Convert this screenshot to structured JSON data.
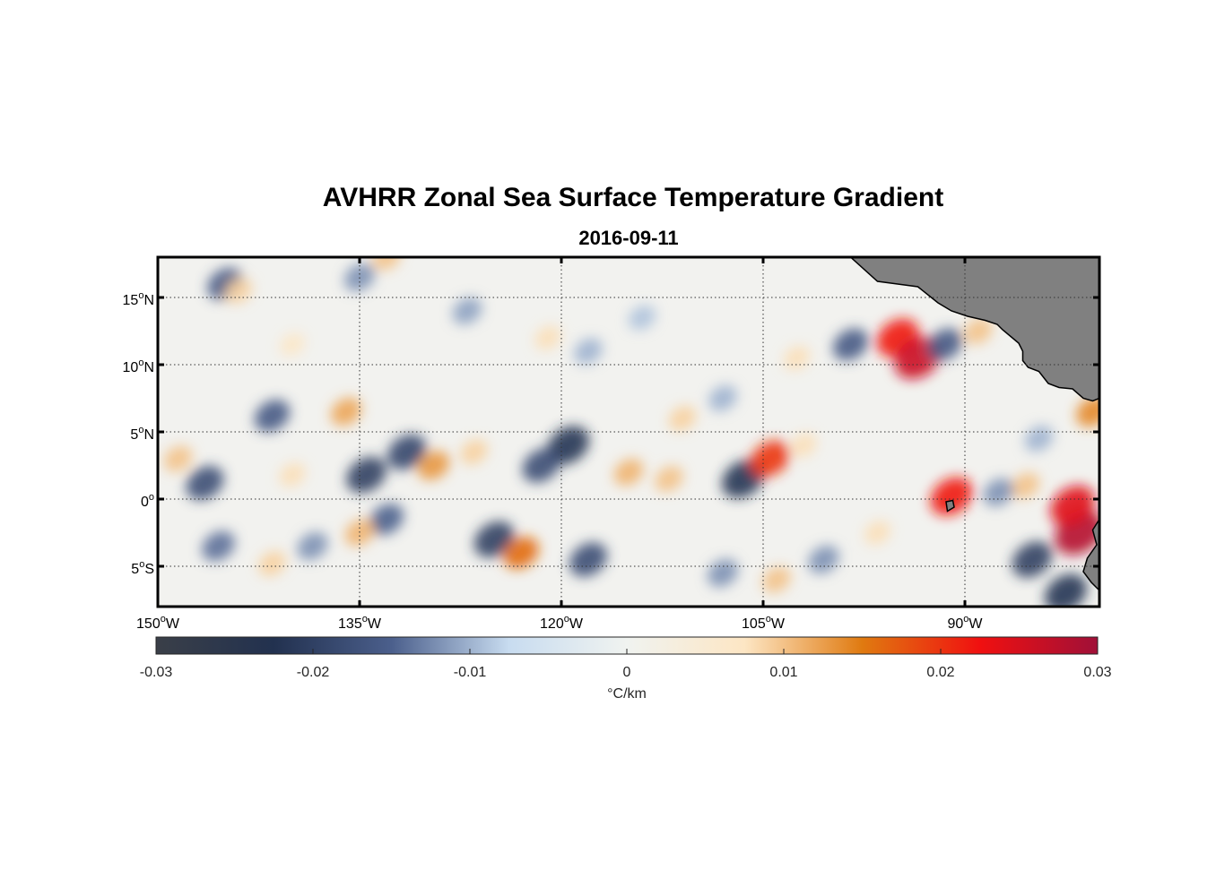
{
  "title": "AVHRR Zonal Sea Surface Temperature Gradient",
  "subtitle": "2016-09-11",
  "map": {
    "lon_range": [
      -150,
      -80
    ],
    "lat_range": [
      -8,
      18
    ],
    "grid": "dotted",
    "lat_ticks": [
      {
        "value": 15,
        "label": "15",
        "suffix": "N"
      },
      {
        "value": 10,
        "label": "10",
        "suffix": "N"
      },
      {
        "value": 5,
        "label": "5",
        "suffix": "N"
      },
      {
        "value": 0,
        "label": "0",
        "suffix": ""
      },
      {
        "value": -5,
        "label": "5",
        "suffix": "S"
      }
    ],
    "lon_ticks": [
      {
        "value": -150,
        "label": "150",
        "suffix": "W"
      },
      {
        "value": -135,
        "label": "135",
        "suffix": "W"
      },
      {
        "value": -120,
        "label": "120",
        "suffix": "W"
      },
      {
        "value": -105,
        "label": "105",
        "suffix": "W"
      },
      {
        "value": -90,
        "label": "90",
        "suffix": "W"
      }
    ],
    "land_color": "#808080",
    "anomalies": [
      {
        "lon": -146.5,
        "lat": 1.2,
        "v": -0.018
      },
      {
        "lon": -141.5,
        "lat": 6.2,
        "v": -0.016
      },
      {
        "lon": -136.0,
        "lat": 6.5,
        "v": 0.012
      },
      {
        "lon": -134.5,
        "lat": 1.8,
        "v": -0.02
      },
      {
        "lon": -131.5,
        "lat": 3.5,
        "v": -0.019
      },
      {
        "lon": -129.5,
        "lat": 2.5,
        "v": 0.013
      },
      {
        "lon": -140.0,
        "lat": 1.8,
        "v": 0.008
      },
      {
        "lon": -145.0,
        "lat": 16.0,
        "v": -0.016
      },
      {
        "lon": -144.0,
        "lat": 15.5,
        "v": 0.009
      },
      {
        "lon": -135.0,
        "lat": 16.5,
        "v": -0.012
      },
      {
        "lon": -133.0,
        "lat": 18.0,
        "v": 0.01
      },
      {
        "lon": -119.5,
        "lat": 4.0,
        "v": -0.022
      },
      {
        "lon": -121.5,
        "lat": 2.5,
        "v": -0.018
      },
      {
        "lon": -115.0,
        "lat": 2.0,
        "v": 0.011
      },
      {
        "lon": -112.0,
        "lat": 1.5,
        "v": 0.01
      },
      {
        "lon": -106.5,
        "lat": 1.5,
        "v": -0.022
      },
      {
        "lon": -104.5,
        "lat": 3.0,
        "v": 0.02
      },
      {
        "lon": -102.0,
        "lat": 4.0,
        "v": 0.008
      },
      {
        "lon": -98.5,
        "lat": 11.5,
        "v": -0.016
      },
      {
        "lon": -95.0,
        "lat": 12.0,
        "v": 0.022
      },
      {
        "lon": -93.5,
        "lat": 10.5,
        "v": 0.026
      },
      {
        "lon": -91.5,
        "lat": 11.5,
        "v": -0.016
      },
      {
        "lon": -89.0,
        "lat": 12.5,
        "v": 0.01
      },
      {
        "lon": -91.0,
        "lat": 0.2,
        "v": 0.022
      },
      {
        "lon": -81.5,
        "lat": -2.5,
        "v": 0.028
      },
      {
        "lon": -82.0,
        "lat": -0.5,
        "v": 0.024
      },
      {
        "lon": -85.0,
        "lat": -4.5,
        "v": -0.02
      },
      {
        "lon": -82.5,
        "lat": -7.0,
        "v": -0.022
      },
      {
        "lon": -85.5,
        "lat": 1.0,
        "v": 0.01
      },
      {
        "lon": -87.5,
        "lat": 0.5,
        "v": -0.012
      },
      {
        "lon": -125.0,
        "lat": -3.0,
        "v": -0.02
      },
      {
        "lon": -123.0,
        "lat": -4.0,
        "v": 0.016
      },
      {
        "lon": -118.0,
        "lat": -4.5,
        "v": -0.018
      },
      {
        "lon": -133.0,
        "lat": -1.5,
        "v": -0.015
      },
      {
        "lon": -135.0,
        "lat": -2.5,
        "v": 0.011
      },
      {
        "lon": -145.5,
        "lat": -3.5,
        "v": -0.014
      },
      {
        "lon": -141.5,
        "lat": -4.8,
        "v": 0.009
      },
      {
        "lon": -138.5,
        "lat": -3.5,
        "v": -0.012
      },
      {
        "lon": -126.5,
        "lat": 3.5,
        "v": 0.009
      },
      {
        "lon": -121.0,
        "lat": 12.0,
        "v": 0.008
      },
      {
        "lon": -118.0,
        "lat": 11.0,
        "v": -0.01
      },
      {
        "lon": -108.0,
        "lat": 7.5,
        "v": -0.01
      },
      {
        "lon": -111.0,
        "lat": 6.0,
        "v": 0.009
      },
      {
        "lon": -100.5,
        "lat": -4.5,
        "v": -0.012
      },
      {
        "lon": -96.5,
        "lat": -2.5,
        "v": 0.008
      },
      {
        "lon": -108.0,
        "lat": -5.5,
        "v": -0.012
      },
      {
        "lon": -127.0,
        "lat": 14.0,
        "v": -0.011
      },
      {
        "lon": -140.0,
        "lat": 11.5,
        "v": 0.007
      },
      {
        "lon": -148.5,
        "lat": 3.0,
        "v": 0.01
      },
      {
        "lon": -84.5,
        "lat": 4.5,
        "v": -0.01
      },
      {
        "lon": -80.5,
        "lat": 6.5,
        "v": 0.014
      },
      {
        "lon": -104.0,
        "lat": -6.0,
        "v": 0.01
      },
      {
        "lon": -114.0,
        "lat": 13.5,
        "v": -0.009
      },
      {
        "lon": -102.5,
        "lat": 10.5,
        "v": 0.008
      }
    ]
  },
  "colorbar": {
    "range": [
      -0.03,
      0.03
    ],
    "ticks": [
      "-0.03",
      "-0.02",
      "-0.01",
      "0",
      "0.01",
      "0.02",
      "0.03"
    ],
    "label": "°C/km",
    "colors": [
      "#3a3f48",
      "#22314f",
      "#4b5f8c",
      "#c8dcf0",
      "#f0f3f0",
      "#fde6c4",
      "#e07a10",
      "#f01010",
      "#a01038"
    ]
  }
}
